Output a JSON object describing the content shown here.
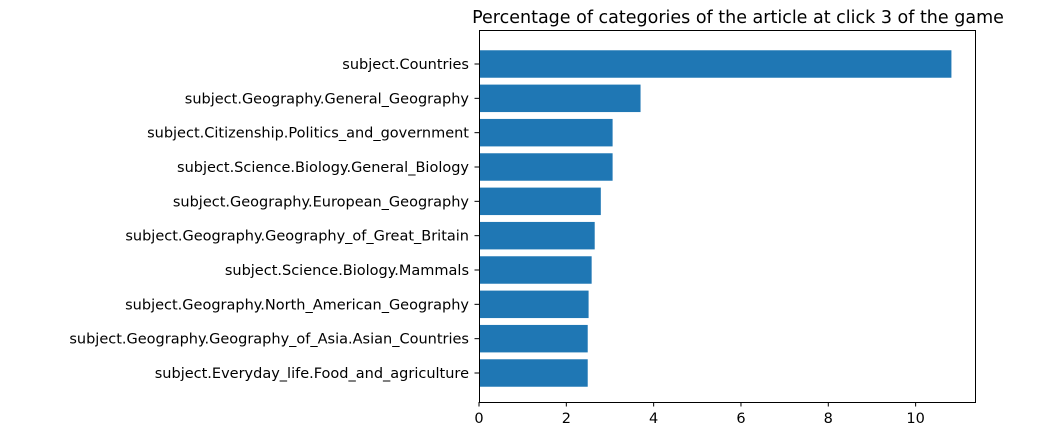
{
  "chart_data": {
    "type": "bar",
    "orientation": "horizontal",
    "title": "Percentage of categories of the article at click 3 of the game",
    "xlabel": "",
    "ylabel": "",
    "categories": [
      "subject.Countries",
      "subject.Geography.General_Geography",
      "subject.Citizenship.Politics_and_government",
      "subject.Science.Biology.General_Biology",
      "subject.Geography.European_Geography",
      "subject.Geography.Geography_of_Great_Britain",
      "subject.Science.Biology.Mammals",
      "subject.Geography.North_American_Geography",
      "subject.Geography.Geography_of_Asia.Asian_Countries",
      "subject.Everyday_life.Food_and_agriculture"
    ],
    "values": [
      10.82,
      3.7,
      3.06,
      3.06,
      2.79,
      2.65,
      2.58,
      2.51,
      2.49,
      2.49
    ],
    "xlim": [
      0,
      11.36
    ],
    "xticks": [
      0,
      2,
      4,
      6,
      8,
      10
    ],
    "grid": false,
    "legend": "none",
    "bar_color": "#1f77b4"
  }
}
